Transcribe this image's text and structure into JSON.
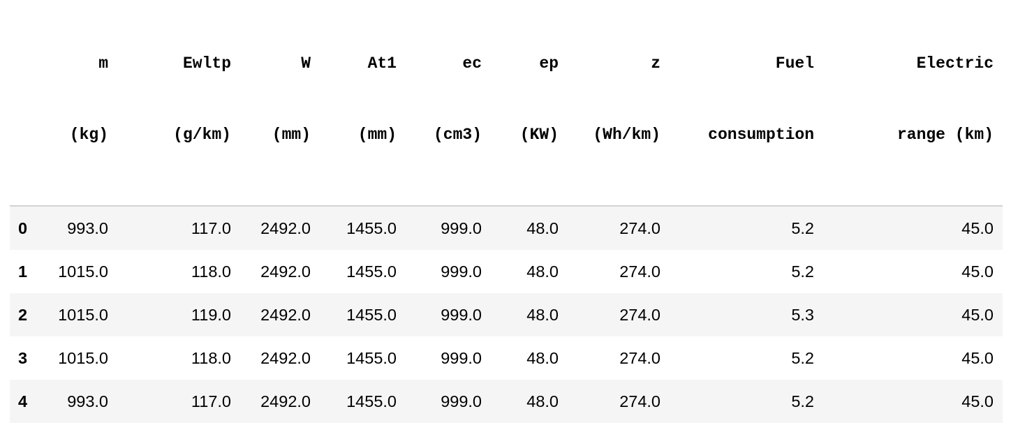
{
  "table": {
    "columns": [
      {
        "lines": [
          "",
          ""
        ]
      },
      {
        "lines": [
          "m",
          "(kg)"
        ]
      },
      {
        "lines": [
          "Ewltp",
          "(g/km)"
        ]
      },
      {
        "lines": [
          "W",
          "(mm)"
        ]
      },
      {
        "lines": [
          "At1",
          "(mm)"
        ]
      },
      {
        "lines": [
          "ec",
          "(cm3)"
        ]
      },
      {
        "lines": [
          "ep",
          "(KW)"
        ]
      },
      {
        "lines": [
          "z",
          "(Wh/km)"
        ]
      },
      {
        "lines": [
          "Fuel",
          "consumption"
        ]
      },
      {
        "lines": [
          "Electric",
          "range (km)"
        ]
      }
    ],
    "rows": [
      {
        "index": "0",
        "cells": [
          "993.0",
          "117.0",
          "2492.0",
          "1455.0",
          "999.0",
          "48.0",
          "274.0",
          "5.2",
          "45.0"
        ]
      },
      {
        "index": "1",
        "cells": [
          "1015.0",
          "118.0",
          "2492.0",
          "1455.0",
          "999.0",
          "48.0",
          "274.0",
          "5.2",
          "45.0"
        ]
      },
      {
        "index": "2",
        "cells": [
          "1015.0",
          "119.0",
          "2492.0",
          "1455.0",
          "999.0",
          "48.0",
          "274.0",
          "5.3",
          "45.0"
        ]
      },
      {
        "index": "3",
        "cells": [
          "1015.0",
          "118.0",
          "2492.0",
          "1455.0",
          "999.0",
          "48.0",
          "274.0",
          "5.2",
          "45.0"
        ]
      },
      {
        "index": "4",
        "cells": [
          "993.0",
          "117.0",
          "2492.0",
          "1455.0",
          "999.0",
          "48.0",
          "274.0",
          "5.2",
          "45.0"
        ]
      }
    ]
  },
  "colors": {
    "stripe": "#f5f5f5",
    "header_rule": "#d2d2d2",
    "text": "#000000"
  }
}
